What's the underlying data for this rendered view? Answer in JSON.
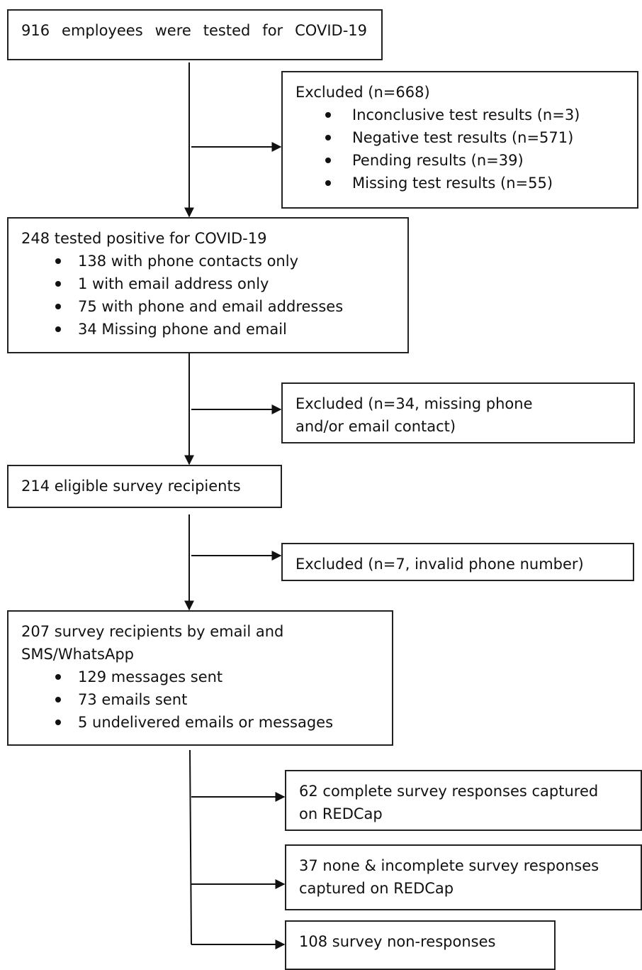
{
  "nodes": [
    {
      "lines": [
        "916 employees were tested for COVID-19"
      ],
      "items": []
    },
    {
      "lines": [
        "Excluded (n=668)"
      ],
      "items": [
        "Inconclusive test results (n=3)",
        "Negative test results (n=571)",
        "Pending results (n=39)",
        "Missing test results (n=55)"
      ]
    },
    {
      "lines": [
        "248 tested positive for COVID-19"
      ],
      "items": [
        "138 with phone contacts only",
        "1 with email address only",
        "75 with phone and email addresses",
        "34 Missing phone and email"
      ]
    },
    {
      "lines": [
        "Excluded (n=34, missing phone",
        "and/or email contact)"
      ],
      "items": []
    },
    {
      "lines": [
        "214 eligible survey recipients"
      ],
      "items": []
    },
    {
      "lines": [
        "Excluded (n=7, invalid phone number)"
      ],
      "items": []
    },
    {
      "lines": [
        "207 survey recipients by email and",
        "SMS/WhatsApp"
      ],
      "items": [
        "129 messages sent",
        "73 emails sent",
        "5 undelivered emails or messages"
      ]
    },
    {
      "lines": [
        "62 complete survey responses captured",
        "on REDCap"
      ],
      "items": []
    },
    {
      "lines": [
        "37 none & incomplete survey responses",
        "captured on REDCap"
      ],
      "items": []
    },
    {
      "lines": [
        "108 survey non-responses"
      ],
      "items": []
    }
  ]
}
